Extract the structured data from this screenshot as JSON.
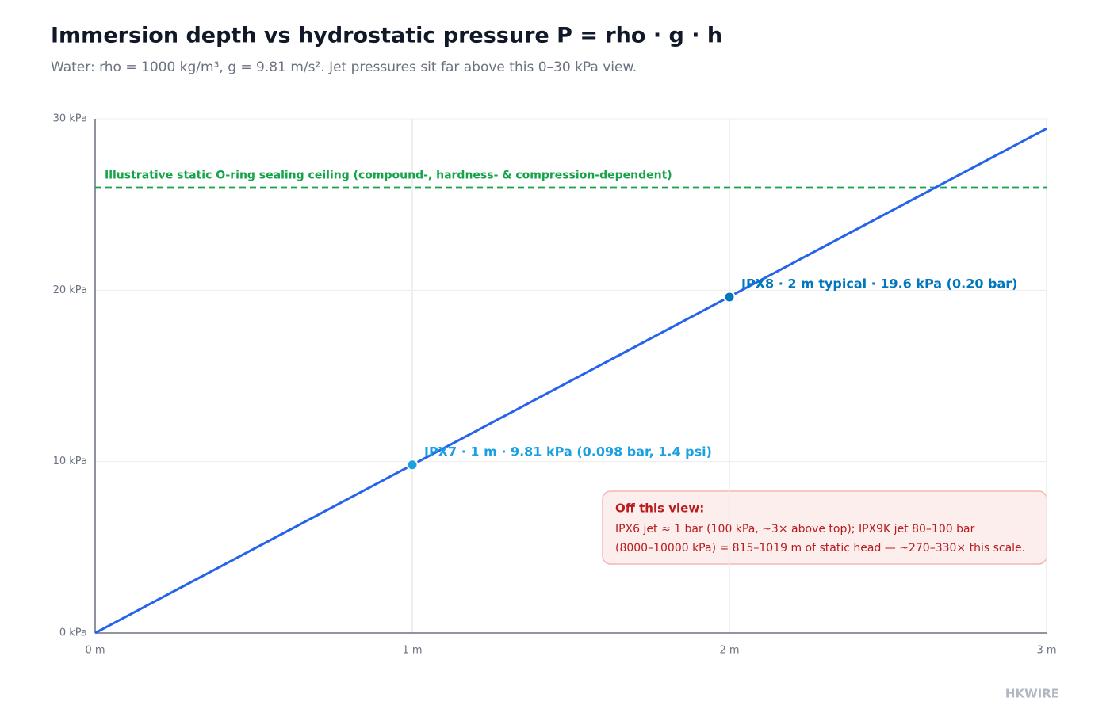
{
  "chart_data": {
    "type": "line",
    "title": "Immersion depth vs hydrostatic pressure P = rho · g · h",
    "subtitle": "Water: rho = 1000 kg/m³, g = 9.81 m/s². Jet pressures sit far above this 0–30 kPa view.",
    "x": [
      0,
      1,
      2,
      3
    ],
    "series": [
      {
        "color": "#2563eb",
        "values": [
          0,
          9.81,
          19.62,
          29.43
        ]
      }
    ],
    "xlim": [
      0,
      3
    ],
    "xticks": [
      {
        "value": 0,
        "label": "0 m"
      },
      {
        "value": 1,
        "label": "1 m"
      },
      {
        "value": 2,
        "label": "2 m"
      },
      {
        "value": 3,
        "label": "3 m"
      }
    ],
    "ylim": [
      0,
      30
    ],
    "yticks": [
      {
        "value": 0,
        "label": "0 kPa"
      },
      {
        "value": 10,
        "label": "10 kPa"
      },
      {
        "value": 20,
        "label": "20 kPa"
      },
      {
        "value": 30,
        "label": "30 kPa"
      }
    ],
    "grid": true,
    "reference_line": {
      "y": 26,
      "label": "Illustrative static O-ring sealing ceiling (compound-, hardness- & compression-dependent)",
      "color": "#16a34a"
    },
    "points": [
      {
        "x": 1,
        "y": 9.81,
        "label": "IPX7 · 1 m · 9.81 kPa (0.098 bar, 1.4 psi)",
        "color": "#1ba1e2"
      },
      {
        "x": 2,
        "y": 19.6,
        "label": "IPX8 · 2 m typical · 19.6 kPa (0.20 bar)",
        "color": "#0277bd"
      }
    ],
    "note": {
      "title": "Off this view:",
      "lines": [
        "IPX6 jet ≈ 1 bar (100 kPa, ~3× above top); IPX9K jet 80–100 bar",
        "(8000–10000 kPa) = 815–1019 m of static head — ~270–330× this scale."
      ]
    },
    "footer": "HKWIRE"
  }
}
